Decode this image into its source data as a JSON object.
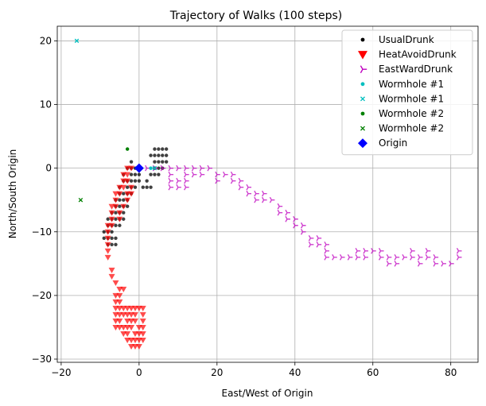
{
  "chart_data": {
    "type": "scatter",
    "title": "Trajectory of Walks (100 steps)",
    "xlabel": "East/West of Origin",
    "ylabel": "North/South Origin",
    "xlim": [
      -21,
      87
    ],
    "ylim": [
      -30.5,
      22.3
    ],
    "xticks": [
      -20,
      0,
      20,
      40,
      60,
      80
    ],
    "yticks": [
      -30,
      -20,
      -10,
      0,
      10,
      20
    ],
    "grid": true,
    "legend_position": "top-right",
    "series": [
      {
        "name": "UsualDrunk",
        "marker": "circle",
        "color": "#000000",
        "points": [
          [
            -2,
            1
          ],
          [
            -2,
            0
          ],
          [
            -2,
            -1
          ],
          [
            -2,
            -2
          ],
          [
            -3,
            -2
          ],
          [
            -3,
            -3
          ],
          [
            -3,
            -4
          ],
          [
            -4,
            -4
          ],
          [
            -4,
            -5
          ],
          [
            -4,
            -6
          ],
          [
            -5,
            -6
          ],
          [
            -5,
            -7
          ],
          [
            -6,
            -7
          ],
          [
            -6,
            -8
          ],
          [
            -6,
            -9
          ],
          [
            -7,
            -9
          ],
          [
            -7,
            -10
          ],
          [
            -8,
            -10
          ],
          [
            -8,
            -11
          ],
          [
            -7,
            -11
          ],
          [
            -6,
            -11
          ],
          [
            -6,
            -12
          ],
          [
            -7,
            -12
          ],
          [
            -8,
            -12
          ],
          [
            -9,
            -10
          ],
          [
            -5,
            -8
          ],
          [
            -5,
            -9
          ],
          [
            -4,
            -8
          ],
          [
            -4,
            -7
          ],
          [
            -3,
            -6
          ],
          [
            -3,
            -5
          ],
          [
            -2,
            -4
          ],
          [
            -2,
            -3
          ],
          [
            -1,
            -3
          ],
          [
            -1,
            -2
          ],
          [
            -1,
            -1
          ],
          [
            -1,
            0
          ],
          [
            -3,
            0
          ],
          [
            -4,
            -1
          ],
          [
            -4,
            -2
          ],
          [
            -5,
            -3
          ],
          [
            -5,
            -4
          ],
          [
            -5,
            -5
          ],
          [
            -6,
            -5
          ],
          [
            -6,
            -6
          ],
          [
            -7,
            -7
          ],
          [
            -7,
            -8
          ],
          [
            -8,
            -8
          ],
          [
            -8,
            -9
          ],
          [
            -9,
            -11
          ],
          [
            0,
            -1
          ],
          [
            0,
            -2
          ],
          [
            1,
            -3
          ],
          [
            2,
            -3
          ],
          [
            3,
            -3
          ],
          [
            2,
            -2
          ],
          [
            3,
            -1
          ],
          [
            4,
            -1
          ],
          [
            5,
            -1
          ],
          [
            4,
            0
          ],
          [
            5,
            0
          ],
          [
            5,
            1
          ],
          [
            4,
            1
          ],
          [
            6,
            1
          ],
          [
            6,
            2
          ],
          [
            5,
            2
          ],
          [
            4,
            2
          ],
          [
            3,
            2
          ],
          [
            4,
            3
          ],
          [
            5,
            3
          ],
          [
            6,
            3
          ],
          [
            7,
            3
          ],
          [
            7,
            2
          ],
          [
            7,
            1
          ],
          [
            6,
            0
          ]
        ]
      },
      {
        "name": "HeatAvoidDrunk",
        "marker": "triangle-down",
        "color": "#ff0000",
        "points": [
          [
            -2,
            0
          ],
          [
            -3,
            -1
          ],
          [
            -3,
            -2
          ],
          [
            -4,
            -2
          ],
          [
            -4,
            -3
          ],
          [
            -5,
            -3
          ],
          [
            -5,
            -4
          ],
          [
            -6,
            -4
          ],
          [
            -6,
            -5
          ],
          [
            -6,
            -6
          ],
          [
            -7,
            -6
          ],
          [
            -7,
            -7
          ],
          [
            -7,
            -8
          ],
          [
            -7,
            -9
          ],
          [
            -8,
            -9
          ],
          [
            -8,
            -10
          ],
          [
            -8,
            -11
          ],
          [
            -8,
            -12
          ],
          [
            -8,
            -13
          ],
          [
            -8,
            -14
          ],
          [
            -7,
            -16
          ],
          [
            -7,
            -17
          ],
          [
            -6,
            -18
          ],
          [
            -6,
            -20
          ],
          [
            -5,
            -20
          ],
          [
            -5,
            -21
          ],
          [
            -6,
            -22
          ],
          [
            -6,
            -23
          ],
          [
            -5,
            -23
          ],
          [
            -5,
            -24
          ],
          [
            -6,
            -24
          ],
          [
            -6,
            -25
          ],
          [
            -5,
            -25
          ],
          [
            -4,
            -25
          ],
          [
            -4,
            -26
          ],
          [
            -3,
            -26
          ],
          [
            -3,
            -25
          ],
          [
            -2,
            -25
          ],
          [
            -2,
            -24
          ],
          [
            -1,
            -24
          ],
          [
            -1,
            -23
          ],
          [
            -1,
            -22
          ],
          [
            0,
            -22
          ],
          [
            1,
            -22
          ],
          [
            1,
            -23
          ],
          [
            1,
            -24
          ],
          [
            1,
            -25
          ],
          [
            1,
            -26
          ],
          [
            1,
            -27
          ],
          [
            0,
            -27
          ],
          [
            0,
            -28
          ],
          [
            -1,
            -28
          ],
          [
            -1,
            -27
          ],
          [
            -2,
            -27
          ],
          [
            -2,
            -28
          ],
          [
            -3,
            -27
          ],
          [
            -3,
            -24
          ],
          [
            -3,
            -23
          ],
          [
            -4,
            -22
          ],
          [
            -4,
            -23
          ],
          [
            -5,
            -22
          ],
          [
            -6,
            -21
          ],
          [
            -5,
            -19
          ],
          [
            -4,
            -19
          ],
          [
            -3,
            -22
          ],
          [
            -2,
            -22
          ],
          [
            -2,
            -23
          ],
          [
            -1,
            -26
          ],
          [
            0,
            -26
          ],
          [
            0,
            -25
          ],
          [
            -3,
            -5
          ],
          [
            -4,
            -6
          ],
          [
            -5,
            -7
          ],
          [
            -5,
            -8
          ],
          [
            -4,
            -1
          ],
          [
            -3,
            0
          ],
          [
            -2,
            -3
          ],
          [
            -2,
            -4
          ],
          [
            -3,
            -4
          ]
        ]
      },
      {
        "name": "EastWardDrunk",
        "marker": "tri-right",
        "color": "#bf00bf",
        "points": [
          [
            2,
            0
          ],
          [
            4,
            0
          ],
          [
            6,
            0
          ],
          [
            8,
            0
          ],
          [
            10,
            0
          ],
          [
            12,
            0
          ],
          [
            14,
            0
          ],
          [
            16,
            0
          ],
          [
            18,
            0
          ],
          [
            20,
            -1
          ],
          [
            22,
            -1
          ],
          [
            24,
            -1
          ],
          [
            24,
            -2
          ],
          [
            26,
            -2
          ],
          [
            28,
            -3
          ],
          [
            28,
            -4
          ],
          [
            30,
            -4
          ],
          [
            32,
            -4
          ],
          [
            32,
            -5
          ],
          [
            34,
            -5
          ],
          [
            36,
            -6
          ],
          [
            38,
            -7
          ],
          [
            40,
            -8
          ],
          [
            40,
            -9
          ],
          [
            42,
            -9
          ],
          [
            42,
            -10
          ],
          [
            44,
            -11
          ],
          [
            46,
            -12
          ],
          [
            48,
            -12
          ],
          [
            48,
            -13
          ],
          [
            48,
            -14
          ],
          [
            50,
            -14
          ],
          [
            52,
            -14
          ],
          [
            54,
            -14
          ],
          [
            56,
            -13
          ],
          [
            58,
            -13
          ],
          [
            58,
            -14
          ],
          [
            60,
            -13
          ],
          [
            62,
            -13
          ],
          [
            62,
            -14
          ],
          [
            64,
            -14
          ],
          [
            64,
            -15
          ],
          [
            66,
            -14
          ],
          [
            68,
            -14
          ],
          [
            70,
            -13
          ],
          [
            70,
            -14
          ],
          [
            72,
            -15
          ],
          [
            74,
            -14
          ],
          [
            74,
            -13
          ],
          [
            76,
            -14
          ],
          [
            76,
            -15
          ],
          [
            78,
            -15
          ],
          [
            80,
            -15
          ],
          [
            82,
            -13
          ],
          [
            82,
            -14
          ],
          [
            8,
            -1
          ],
          [
            8,
            -2
          ],
          [
            10,
            -2
          ],
          [
            12,
            -2
          ],
          [
            12,
            -3
          ],
          [
            10,
            -3
          ],
          [
            8,
            -3
          ],
          [
            12,
            -1
          ],
          [
            26,
            -3
          ],
          [
            30,
            -5
          ],
          [
            36,
            -7
          ],
          [
            44,
            -12
          ],
          [
            56,
            -14
          ],
          [
            66,
            -15
          ],
          [
            72,
            -14
          ],
          [
            46,
            -11
          ],
          [
            38,
            -8
          ],
          [
            20,
            -2
          ],
          [
            16,
            -1
          ],
          [
            14,
            -1
          ]
        ]
      },
      {
        "name": "Wormhole #1",
        "marker": "circle",
        "color": "#00bfbf",
        "points": [
          [
            3,
            0
          ]
        ]
      },
      {
        "name": "Wormhole #1",
        "marker": "x",
        "color": "#00bfbf",
        "points": [
          [
            -16,
            20
          ],
          [
            4,
            0
          ]
        ]
      },
      {
        "name": "Wormhole #2",
        "marker": "circle",
        "color": "#008000",
        "points": [
          [
            -3,
            3
          ]
        ]
      },
      {
        "name": "Wormhole #2",
        "marker": "x",
        "color": "#008000",
        "points": [
          [
            -15,
            -5
          ]
        ]
      },
      {
        "name": "Origin",
        "marker": "diamond",
        "color": "#0000ff",
        "points": [
          [
            0,
            0
          ]
        ]
      }
    ]
  }
}
